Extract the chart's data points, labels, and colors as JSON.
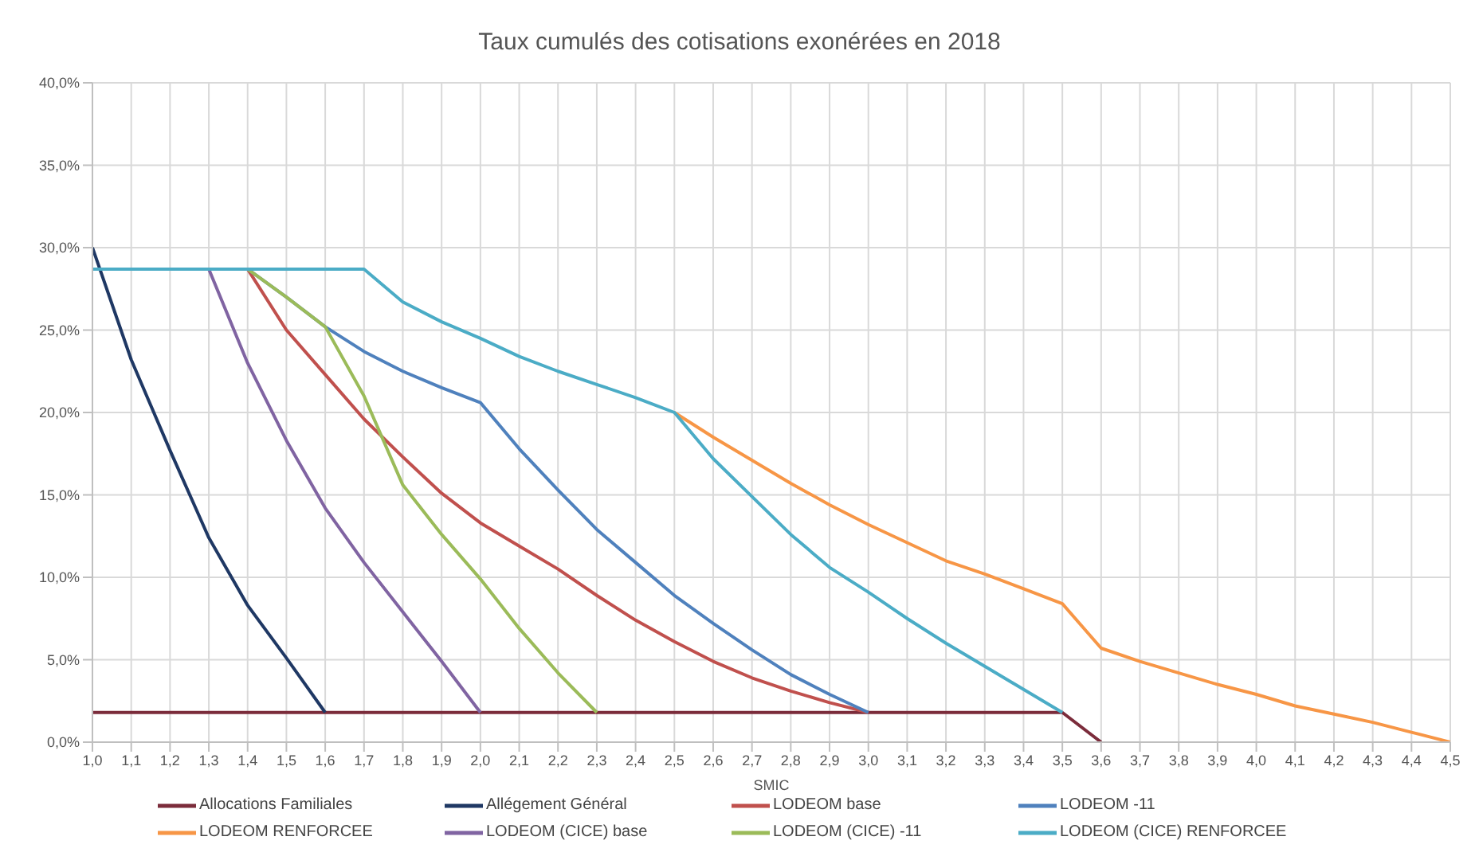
{
  "chart_data": {
    "type": "line",
    "title": "Taux cumulés des cotisations exonérées en 2018",
    "xlabel": "SMIC",
    "xlim": [
      1.0,
      4.5
    ],
    "xticks": [
      {
        "value": 1.0,
        "label": "1,0"
      },
      {
        "value": 1.1,
        "label": "1,1"
      },
      {
        "value": 1.2,
        "label": "1,2"
      },
      {
        "value": 1.3,
        "label": "1,3"
      },
      {
        "value": 1.4,
        "label": "1,4"
      },
      {
        "value": 1.5,
        "label": "1,5"
      },
      {
        "value": 1.6,
        "label": "1,6"
      },
      {
        "value": 1.7,
        "label": "1,7"
      },
      {
        "value": 1.8,
        "label": "1,8"
      },
      {
        "value": 1.9,
        "label": "1,9"
      },
      {
        "value": 2.0,
        "label": "2,0"
      },
      {
        "value": 2.1,
        "label": "2,1"
      },
      {
        "value": 2.2,
        "label": "2,2"
      },
      {
        "value": 2.3,
        "label": "2,3"
      },
      {
        "value": 2.4,
        "label": "2,4"
      },
      {
        "value": 2.5,
        "label": "2,5"
      },
      {
        "value": 2.6,
        "label": "2,6"
      },
      {
        "value": 2.7,
        "label": "2,7"
      },
      {
        "value": 2.8,
        "label": "2,8"
      },
      {
        "value": 2.9,
        "label": "2,9"
      },
      {
        "value": 3.0,
        "label": "3,0"
      },
      {
        "value": 3.1,
        "label": "3,1"
      },
      {
        "value": 3.2,
        "label": "3,2"
      },
      {
        "value": 3.3,
        "label": "3,3"
      },
      {
        "value": 3.4,
        "label": "3,4"
      },
      {
        "value": 3.5,
        "label": "3,5"
      },
      {
        "value": 3.6,
        "label": "3,6"
      },
      {
        "value": 3.7,
        "label": "3,7"
      },
      {
        "value": 3.8,
        "label": "3,8"
      },
      {
        "value": 3.9,
        "label": "3,9"
      },
      {
        "value": 4.0,
        "label": "4,0"
      },
      {
        "value": 4.1,
        "label": "4,1"
      },
      {
        "value": 4.2,
        "label": "4,2"
      },
      {
        "value": 4.3,
        "label": "4,3"
      },
      {
        "value": 4.4,
        "label": "4,4"
      },
      {
        "value": 4.5,
        "label": "4,5"
      }
    ],
    "ylim": [
      0,
      40
    ],
    "yticks": [
      {
        "value": 0,
        "label": "0,0%"
      },
      {
        "value": 5,
        "label": "5,0%"
      },
      {
        "value": 10,
        "label": "10,0%"
      },
      {
        "value": 15,
        "label": "15,0%"
      },
      {
        "value": 20,
        "label": "20,0%"
      },
      {
        "value": 25,
        "label": "25,0%"
      },
      {
        "value": 30,
        "label": "30,0%"
      },
      {
        "value": 35,
        "label": "35,0%"
      },
      {
        "value": 40,
        "label": "40,0%"
      }
    ],
    "grid": true,
    "legend": "bottom",
    "marker": "none",
    "line_style": "solid",
    "series": [
      {
        "name": "Allocations Familiales",
        "color": "#7b2c3b",
        "x": [
          1.0,
          3.5,
          3.6
        ],
        "values": [
          1.8,
          1.8,
          0
        ]
      },
      {
        "name": "Allégement Général",
        "color": "#1f3864",
        "x": [
          1.0,
          1.1,
          1.2,
          1.3,
          1.4,
          1.5,
          1.6
        ],
        "values": [
          30,
          23.2,
          17.7,
          12.4,
          8.3,
          5.1,
          1.8
        ]
      },
      {
        "name": "LODEOM base",
        "color": "#c0504d",
        "x": [
          1.4,
          1.5,
          1.6,
          1.7,
          1.8,
          1.9,
          2.0,
          2.1,
          2.2,
          2.3,
          2.4,
          2.5,
          2.6,
          2.7,
          2.8,
          2.9,
          3.0
        ],
        "values": [
          28.7,
          25.0,
          22.3,
          19.6,
          17.3,
          15.1,
          13.3,
          11.9,
          10.5,
          8.9,
          7.4,
          6.1,
          4.9,
          3.9,
          3.1,
          2.4,
          1.8
        ]
      },
      {
        "name": "LODEOM -11",
        "color": "#4f81bd",
        "x": [
          1.4,
          1.5,
          1.6,
          1.7,
          1.8,
          1.9,
          2.0,
          2.1,
          2.2,
          2.3,
          2.4,
          2.5,
          2.6,
          2.7,
          2.8,
          2.9,
          3.0
        ],
        "values": [
          28.7,
          27.0,
          25.2,
          23.7,
          22.5,
          21.5,
          20.6,
          17.8,
          15.3,
          12.9,
          10.9,
          8.9,
          7.2,
          5.6,
          4.1,
          2.9,
          1.8
        ]
      },
      {
        "name": "LODEOM RENFORCEE",
        "color": "#f79646",
        "x": [
          2.5,
          2.6,
          2.7,
          2.8,
          2.9,
          3.0,
          3.1,
          3.2,
          3.3,
          3.4,
          3.5,
          3.6,
          3.7,
          3.8,
          3.9,
          4.0,
          4.1,
          4.2,
          4.3,
          4.4,
          4.5
        ],
        "values": [
          20.0,
          18.5,
          17.1,
          15.7,
          14.4,
          13.2,
          12.1,
          11.0,
          10.2,
          9.3,
          8.4,
          5.7,
          4.9,
          4.2,
          3.5,
          2.9,
          2.2,
          1.7,
          1.2,
          0.6,
          0
        ]
      },
      {
        "name": "LODEOM (CICE) base",
        "color": "#8064a2",
        "x": [
          1.3,
          1.4,
          1.5,
          1.6,
          1.7,
          1.8,
          1.9,
          2.0
        ],
        "values": [
          28.7,
          23.0,
          18.3,
          14.2,
          10.9,
          7.9,
          4.9,
          1.8
        ]
      },
      {
        "name": "LODEOM (CICE) -11",
        "color": "#9bbb59",
        "x": [
          1.4,
          1.5,
          1.6,
          1.7,
          1.8,
          1.9,
          2.0,
          2.1,
          2.2,
          2.3
        ],
        "values": [
          28.7,
          27.0,
          25.2,
          21.0,
          15.6,
          12.6,
          9.9,
          6.9,
          4.2,
          1.8
        ]
      },
      {
        "name": "LODEOM (CICE) RENFORCEE",
        "color": "#4bacc6",
        "x": [
          1.0,
          1.7,
          1.8,
          1.9,
          2.0,
          2.1,
          2.2,
          2.3,
          2.4,
          2.5,
          2.6,
          2.7,
          2.8,
          2.9,
          3.0,
          3.1,
          3.2,
          3.3,
          3.4,
          3.5
        ],
        "values": [
          28.7,
          28.7,
          26.7,
          25.5,
          24.5,
          23.4,
          22.5,
          21.7,
          20.9,
          20.0,
          17.2,
          14.9,
          12.6,
          10.6,
          9.1,
          7.5,
          6.0,
          4.6,
          3.2,
          1.8
        ]
      }
    ]
  }
}
